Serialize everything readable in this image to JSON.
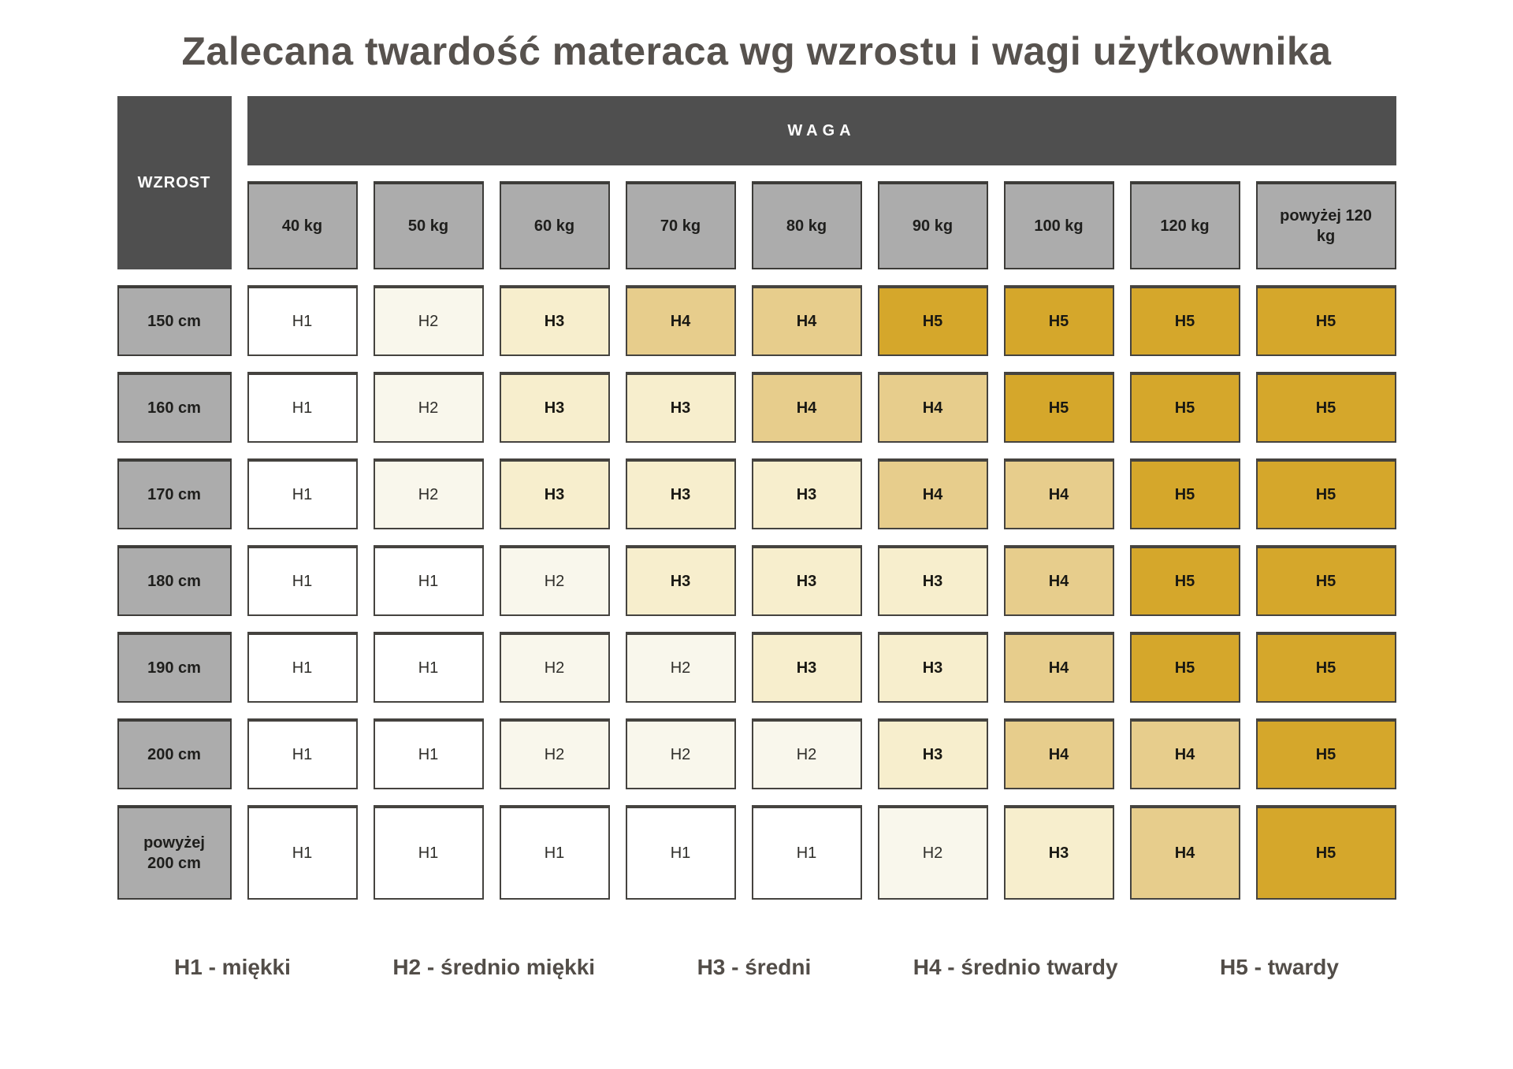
{
  "title": "Zalecana twardość materaca wg wzrostu i wagi użytkownika",
  "table": {
    "corner_label": "WZROST",
    "weight_header": "WAGA",
    "columns": [
      "40 kg",
      "50 kg",
      "60 kg",
      "70 kg",
      "80 kg",
      "90 kg",
      "100 kg",
      "120 kg",
      "powyżej 120 kg"
    ],
    "rows": [
      {
        "label": "150 cm",
        "values": [
          "H1",
          "H2",
          "H3",
          "H4",
          "H4",
          "H5",
          "H5",
          "H5",
          "H5"
        ]
      },
      {
        "label": "160 cm",
        "values": [
          "H1",
          "H2",
          "H3",
          "H3",
          "H4",
          "H4",
          "H5",
          "H5",
          "H5"
        ]
      },
      {
        "label": "170 cm",
        "values": [
          "H1",
          "H2",
          "H3",
          "H3",
          "H3",
          "H4",
          "H4",
          "H5",
          "H5"
        ]
      },
      {
        "label": "180 cm",
        "values": [
          "H1",
          "H1",
          "H2",
          "H3",
          "H3",
          "H3",
          "H4",
          "H5",
          "H5"
        ]
      },
      {
        "label": "190 cm",
        "values": [
          "H1",
          "H1",
          "H2",
          "H2",
          "H3",
          "H3",
          "H4",
          "H5",
          "H5"
        ]
      },
      {
        "label": "200 cm",
        "values": [
          "H1",
          "H1",
          "H2",
          "H2",
          "H2",
          "H3",
          "H4",
          "H4",
          "H5"
        ]
      },
      {
        "label": "powyżej 200 cm",
        "values": [
          "H1",
          "H1",
          "H1",
          "H1",
          "H1",
          "H2",
          "H3",
          "H4",
          "H5"
        ]
      }
    ]
  },
  "legend": {
    "items": [
      "H1 - miękki",
      "H2 - średnio miękki",
      "H3 - średni",
      "H4 - średnio twardy",
      "H5 - twardy"
    ]
  },
  "colors": {
    "H1": "#FFFFFF",
    "H2": "#F9F7EC",
    "H3": "#F7EECD",
    "H4": "#E7CD8C",
    "H5": "#D5A72B",
    "header_dark": "#4F4F4F",
    "header_gray": "#ACACAC",
    "title_text": "#57524E"
  },
  "chart_data": {
    "type": "heatmap",
    "title": "Zalecana twardość materaca wg wzrostu i wagi użytkownika",
    "xlabel": "WAGA",
    "ylabel": "WZROST",
    "x_categories": [
      "40 kg",
      "50 kg",
      "60 kg",
      "70 kg",
      "80 kg",
      "90 kg",
      "100 kg",
      "120 kg",
      "powyżej 120 kg"
    ],
    "y_categories": [
      "150 cm",
      "160 cm",
      "170 cm",
      "180 cm",
      "190 cm",
      "200 cm",
      "powyżej 200 cm"
    ],
    "values": [
      [
        "H1",
        "H2",
        "H3",
        "H4",
        "H4",
        "H5",
        "H5",
        "H5",
        "H5"
      ],
      [
        "H1",
        "H2",
        "H3",
        "H3",
        "H4",
        "H4",
        "H5",
        "H5",
        "H5"
      ],
      [
        "H1",
        "H2",
        "H3",
        "H3",
        "H3",
        "H4",
        "H4",
        "H5",
        "H5"
      ],
      [
        "H1",
        "H1",
        "H2",
        "H3",
        "H3",
        "H3",
        "H4",
        "H5",
        "H5"
      ],
      [
        "H1",
        "H1",
        "H2",
        "H2",
        "H3",
        "H3",
        "H4",
        "H5",
        "H5"
      ],
      [
        "H1",
        "H1",
        "H2",
        "H2",
        "H2",
        "H3",
        "H4",
        "H4",
        "H5"
      ],
      [
        "H1",
        "H1",
        "H1",
        "H1",
        "H1",
        "H2",
        "H3",
        "H4",
        "H5"
      ]
    ],
    "value_colors": {
      "H1": "#FFFFFF",
      "H2": "#F9F7EC",
      "H3": "#F7EECD",
      "H4": "#E7CD8C",
      "H5": "#D5A72B"
    },
    "legend_entries": [
      "H1 - miękki",
      "H2 - średnio miękki",
      "H3 - średni",
      "H4 - średnio twardy",
      "H5 - twardy"
    ],
    "legend_position": "bottom",
    "grid": false
  }
}
